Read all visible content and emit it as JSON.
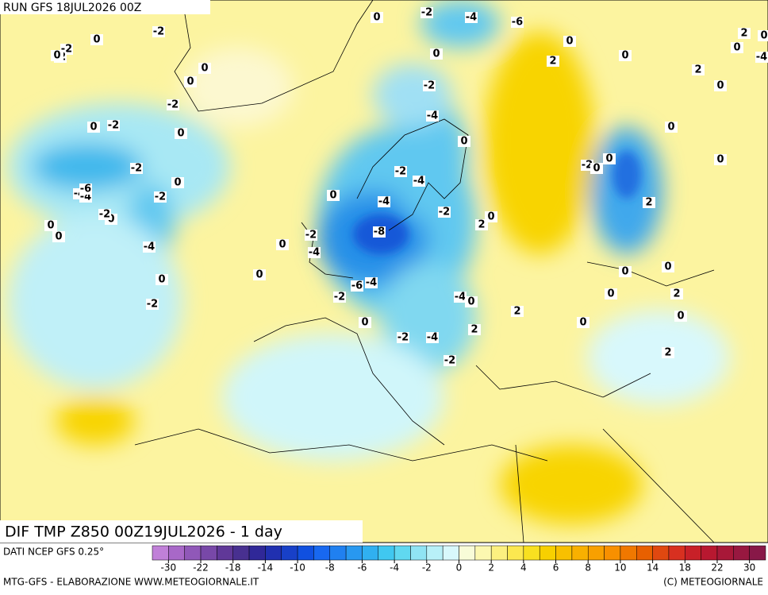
{
  "header": {
    "run": "RUN GFS 18JUL2026 00Z"
  },
  "map": {
    "title": "DIF TMP Z850 00Z19JUL2026 - 1 day",
    "contour_labels": [
      -2,
      -4,
      0,
      -2,
      -2,
      0,
      0,
      -2,
      0,
      0,
      -2,
      0,
      -2,
      -2,
      0,
      0,
      0,
      -4,
      0,
      -2,
      -6,
      -4,
      -2,
      0,
      -2,
      0,
      0,
      -4,
      -4,
      -4,
      -2,
      0,
      -8,
      -4,
      0,
      -2,
      -4,
      -6,
      -2,
      -4,
      0,
      2,
      -2,
      -2,
      -4,
      0,
      2,
      0,
      -2,
      0,
      0,
      -2,
      -4,
      -6,
      -2,
      0,
      2,
      0,
      0,
      2,
      0,
      2,
      0,
      0,
      2,
      0,
      0,
      0,
      2,
      2,
      0,
      0,
      2,
      0,
      -4,
      0,
      0
    ]
  },
  "colorbar": {
    "source": "DATI NCEP GFS 0.25°",
    "colors": [
      "#c080d8",
      "#a868c8",
      "#9058b8",
      "#7848a8",
      "#603898",
      "#483090",
      "#302898",
      "#2030b0",
      "#1840c8",
      "#1050e0",
      "#1868f0",
      "#2080f0",
      "#2898f0",
      "#30b0f0",
      "#40c8f0",
      "#60d8f0",
      "#90e4f4",
      "#b8f0f8",
      "#d8f8fc",
      "#f8fcd8",
      "#fcf8b0",
      "#fcf080",
      "#fce850",
      "#f8e020",
      "#f8d000",
      "#f8c000",
      "#f8b000",
      "#f8a000",
      "#f89000",
      "#f07800",
      "#e86000",
      "#e04810",
      "#d83020",
      "#c82028",
      "#b81830",
      "#a81838",
      "#981840",
      "#881848"
    ],
    "ticks": [
      -30,
      -22,
      -18,
      -14,
      -10,
      -8,
      -6,
      -4,
      -2,
      0,
      2,
      4,
      6,
      8,
      10,
      14,
      18,
      22,
      30
    ]
  },
  "footer": {
    "left": "MTG-GFS - ELABORAZIONE WWW.METEOGIORNALE.IT",
    "right": "(C) METEOGIORNALE"
  }
}
